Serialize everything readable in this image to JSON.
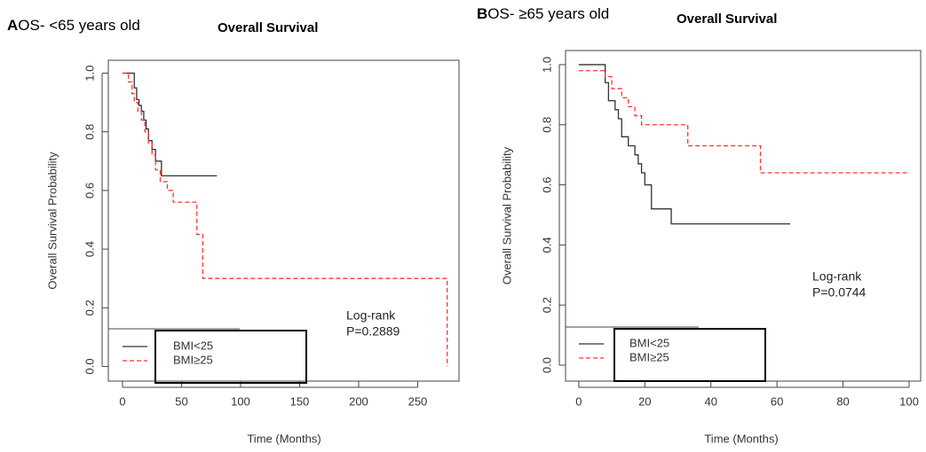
{
  "chart_data": [
    {
      "type": "line",
      "step": true,
      "panel_label": "A",
      "heading": "OS- <65 years old",
      "title": "Overall Survival",
      "xlabel": "Time (Months)",
      "ylabel": "Overall Survival Probability",
      "annotation": [
        "Log-rank",
        "P=0.2889"
      ],
      "xlim": [
        -12,
        285
      ],
      "ylim": [
        -0.05,
        1.044
      ],
      "xticks": [
        0,
        50,
        100,
        150,
        200,
        250
      ],
      "yticks": [
        {
          "value": 0,
          "label": "0.0"
        },
        0.2,
        0.4,
        0.6,
        0.8,
        {
          "value": 1,
          "label": "1.0"
        }
      ],
      "series": [
        {
          "name": "BMI<25",
          "color": "#333333",
          "dash": false,
          "x": [
            0,
            10,
            12,
            14,
            16,
            18,
            20,
            22,
            25,
            28,
            33,
            80
          ],
          "values": [
            1.0,
            0.95,
            0.91,
            0.89,
            0.87,
            0.84,
            0.81,
            0.77,
            0.74,
            0.7,
            0.65,
            0.65
          ]
        },
        {
          "name": "BMI≥25",
          "color": "#ff3333",
          "dash": true,
          "x": [
            0,
            5,
            8,
            10,
            13,
            16,
            19,
            22,
            25,
            28,
            32,
            38,
            43,
            63,
            68,
            275
          ],
          "values": [
            1.0,
            0.97,
            0.93,
            0.9,
            0.87,
            0.84,
            0.8,
            0.76,
            0.72,
            0.67,
            0.63,
            0.6,
            0.56,
            0.45,
            0.3,
            0.0
          ]
        }
      ]
    },
    {
      "type": "line",
      "step": true,
      "panel_label": "B",
      "heading": "OS- ≥65 years old",
      "title": "Overall Survival",
      "xlabel": "Time (Months)",
      "ylabel": "Overall Survival Probability",
      "annotation": [
        "Log-rank",
        "P=0.0744"
      ],
      "xlim": [
        -4,
        103.5
      ],
      "ylim": [
        -0.053,
        1.047
      ],
      "xticks": [
        0,
        20,
        40,
        60,
        80,
        100
      ],
      "yticks": [
        {
          "value": 0,
          "label": "0.0"
        },
        0.2,
        0.4,
        0.6,
        0.8,
        {
          "value": 1,
          "label": "1.0"
        }
      ],
      "series": [
        {
          "name": "BMI<25",
          "color": "#333333",
          "dash": false,
          "x": [
            0,
            8,
            9,
            11,
            12,
            13,
            15,
            17,
            18,
            19,
            20,
            22,
            28,
            64
          ],
          "values": [
            1.0,
            0.94,
            0.88,
            0.85,
            0.82,
            0.76,
            0.73,
            0.7,
            0.67,
            0.64,
            0.6,
            0.52,
            0.47,
            0.47
          ]
        },
        {
          "name": "BMI≥25",
          "color": "#ff3333",
          "dash": true,
          "x": [
            0,
            8,
            10,
            13,
            15,
            17,
            19,
            33,
            55,
            100
          ],
          "values": [
            0.98,
            0.96,
            0.92,
            0.89,
            0.86,
            0.83,
            0.8,
            0.73,
            0.64,
            0.64
          ]
        }
      ]
    }
  ]
}
